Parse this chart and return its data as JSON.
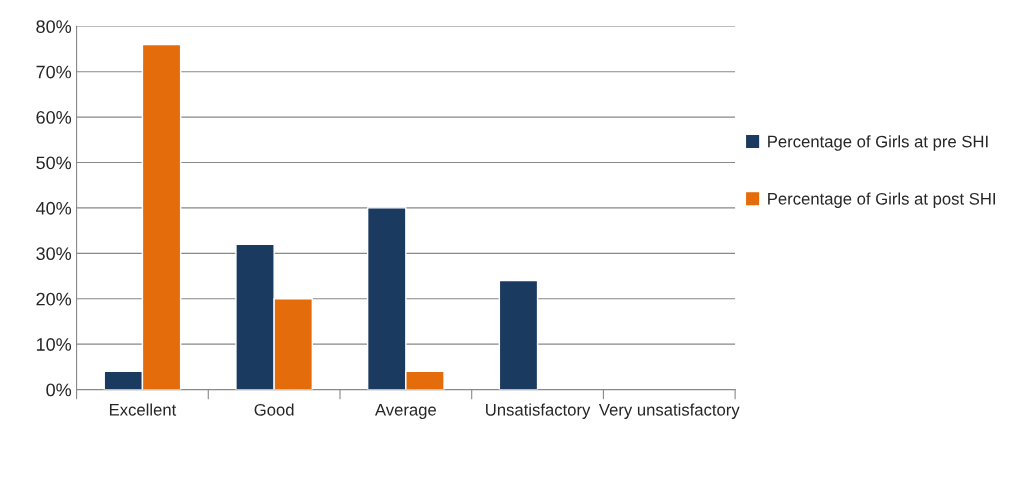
{
  "chart_data": {
    "type": "bar",
    "categories": [
      "Excellent",
      "Good",
      "Average",
      "Unsatisfactory",
      "Very unsatisfactory"
    ],
    "series": [
      {
        "name": "Percentage of Girls at pre SHI",
        "color": "#1b3a60",
        "values": [
          4,
          32,
          40,
          24,
          null
        ]
      },
      {
        "name": "Percentage of Girls at post SHI",
        "color": "#e46c0a",
        "values": [
          76,
          20,
          4,
          null,
          null
        ]
      }
    ],
    "ylim": [
      0,
      80
    ],
    "yticks": [
      {
        "value": 0,
        "label": "0%"
      },
      {
        "value": 10,
        "label": "10%"
      },
      {
        "value": 20,
        "label": "20%"
      },
      {
        "value": 30,
        "label": "30%"
      },
      {
        "value": 40,
        "label": "40%"
      },
      {
        "value": 50,
        "label": "50%"
      },
      {
        "value": 60,
        "label": "60%"
      },
      {
        "value": 70,
        "label": "70%"
      },
      {
        "value": 80,
        "label": "80%"
      }
    ],
    "grid": "y",
    "legend": "right"
  }
}
